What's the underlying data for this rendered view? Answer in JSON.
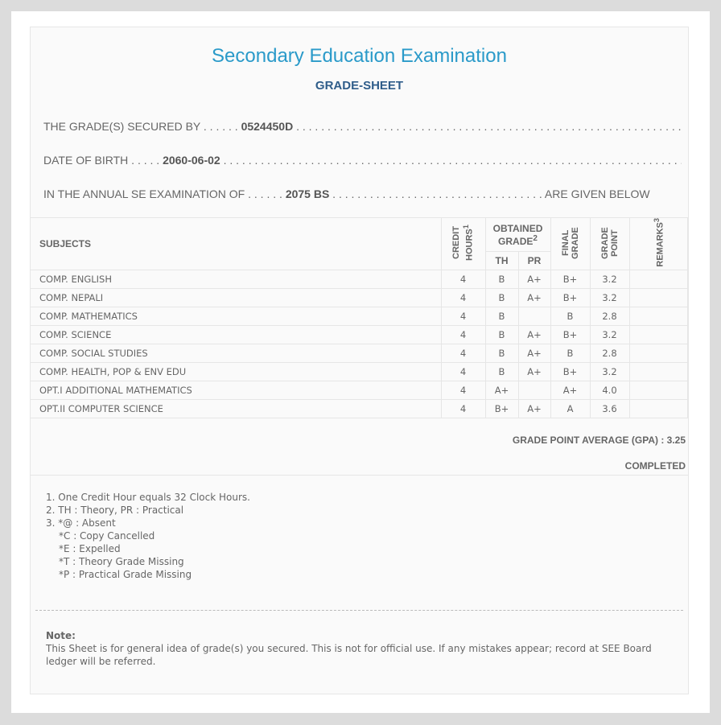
{
  "title": "Secondary Education Examination",
  "subtitle": "GRADE-SHEET",
  "secured_label": "THE GRADE(S) SECURED BY",
  "symbol_no": "0524450D",
  "dob_label": "DATE OF BIRTH",
  "dob": "2060-06-02",
  "exam_label": "IN THE ANNUAL SE EXAMINATION OF",
  "exam_year": "2075 BS",
  "exam_suffix": "ARE GIVEN BELOW",
  "headers": {
    "subjects": "SUBJECTS",
    "credit": "CREDIT HOURS",
    "credit_sup": "1",
    "obtained": "OBTAINED GRADE",
    "obtained_sup": "2",
    "th": "TH",
    "pr": "PR",
    "final": "FINAL GRADE",
    "gp": "GRADE POINT",
    "remarks": "REMARKS",
    "remarks_sup": "3"
  },
  "rows": [
    {
      "subject": "COMP. ENGLISH",
      "credit": "4",
      "th": "B",
      "pr": "A+",
      "final": "B+",
      "gp": "3.2",
      "remarks": ""
    },
    {
      "subject": "COMP. NEPALI",
      "credit": "4",
      "th": "B",
      "pr": "A+",
      "final": "B+",
      "gp": "3.2",
      "remarks": ""
    },
    {
      "subject": "COMP. MATHEMATICS",
      "credit": "4",
      "th": "B",
      "pr": "",
      "final": "B",
      "gp": "2.8",
      "remarks": ""
    },
    {
      "subject": "COMP. SCIENCE",
      "credit": "4",
      "th": "B",
      "pr": "A+",
      "final": "B+",
      "gp": "3.2",
      "remarks": ""
    },
    {
      "subject": "COMP. SOCIAL STUDIES",
      "credit": "4",
      "th": "B",
      "pr": "A+",
      "final": "B",
      "gp": "2.8",
      "remarks": ""
    },
    {
      "subject": "COMP. HEALTH, POP & ENV EDU",
      "credit": "4",
      "th": "B",
      "pr": "A+",
      "final": "B+",
      "gp": "3.2",
      "remarks": ""
    },
    {
      "subject": "OPT.I ADDITIONAL MATHEMATICS",
      "credit": "4",
      "th": "A+",
      "pr": "",
      "final": "A+",
      "gp": "4.0",
      "remarks": ""
    },
    {
      "subject": "OPT.II COMPUTER SCIENCE",
      "credit": "4",
      "th": "B+",
      "pr": "A+",
      "final": "A",
      "gp": "3.6",
      "remarks": ""
    }
  ],
  "gpa": "GRADE POINT AVERAGE (GPA) : 3.25",
  "status": "COMPLETED",
  "footnotes": [
    "1. One Credit Hour equals 32 Clock Hours.",
    "2. TH : Theory, PR : Practical",
    "3. *@ : Absent",
    "*C : Copy Cancelled",
    "*E : Expelled",
    "*T : Theory Grade Missing",
    "*P : Practical Grade Missing"
  ],
  "note_title": "Note:",
  "note_text": "This Sheet is for general idea of grade(s) you secured. This is not for official use. If any mistakes appear; record at SEE Board ledger will be referred."
}
